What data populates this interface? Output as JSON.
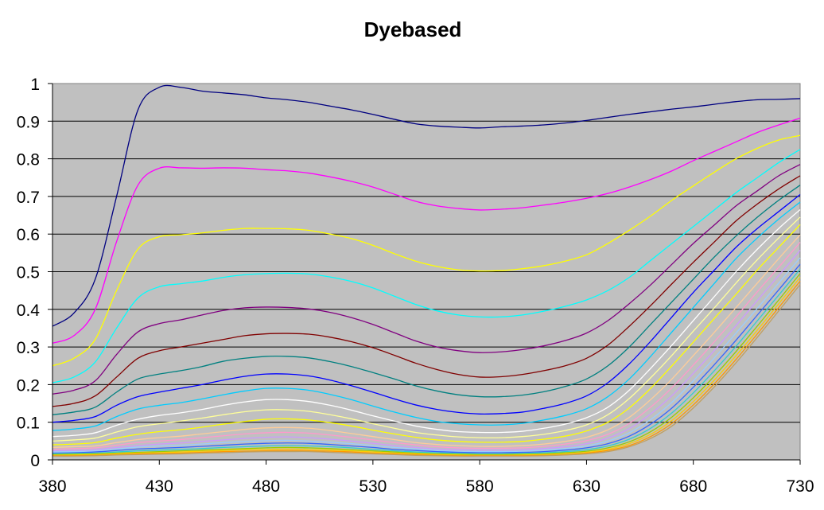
{
  "chart_data": {
    "type": "line",
    "title": "Dyebased",
    "xlabel": "",
    "ylabel": "",
    "xlim": [
      380,
      730
    ],
    "ylim": [
      0,
      1
    ],
    "x_ticks": [
      "380",
      "430",
      "480",
      "530",
      "580",
      "630",
      "680",
      "730"
    ],
    "y_ticks": [
      "0",
      "0.1",
      "0.2",
      "0.3",
      "0.4",
      "0.5",
      "0.6",
      "0.7",
      "0.8",
      "0.9",
      "1"
    ],
    "grid": true,
    "legend": "none",
    "plot_background": "#c0c0c0",
    "x": [
      380,
      390,
      400,
      410,
      420,
      430,
      440,
      450,
      460,
      470,
      480,
      490,
      500,
      510,
      520,
      530,
      540,
      550,
      560,
      570,
      580,
      590,
      600,
      610,
      620,
      630,
      640,
      650,
      660,
      670,
      680,
      690,
      700,
      710,
      720,
      730
    ],
    "series": [
      {
        "color": "#000080",
        "values": [
          0.355,
          0.39,
          0.48,
          0.7,
          0.93,
          0.99,
          0.99,
          0.98,
          0.975,
          0.97,
          0.962,
          0.957,
          0.95,
          0.94,
          0.93,
          0.918,
          0.905,
          0.893,
          0.887,
          0.884,
          0.882,
          0.885,
          0.887,
          0.89,
          0.895,
          0.902,
          0.91,
          0.918,
          0.925,
          0.932,
          0.938,
          0.945,
          0.952,
          0.957,
          0.958,
          0.96
        ]
      },
      {
        "color": "#ff00ff",
        "values": [
          0.31,
          0.33,
          0.4,
          0.58,
          0.73,
          0.775,
          0.776,
          0.775,
          0.776,
          0.775,
          0.771,
          0.768,
          0.762,
          0.752,
          0.74,
          0.725,
          0.706,
          0.687,
          0.675,
          0.668,
          0.664,
          0.666,
          0.67,
          0.677,
          0.685,
          0.695,
          0.708,
          0.725,
          0.745,
          0.768,
          0.795,
          0.82,
          0.845,
          0.87,
          0.89,
          0.908
        ]
      },
      {
        "color": "#ffff00",
        "values": [
          0.25,
          0.27,
          0.32,
          0.45,
          0.56,
          0.593,
          0.598,
          0.603,
          0.61,
          0.615,
          0.615,
          0.614,
          0.61,
          0.6,
          0.588,
          0.57,
          0.548,
          0.528,
          0.514,
          0.505,
          0.502,
          0.503,
          0.508,
          0.516,
          0.528,
          0.545,
          0.575,
          0.61,
          0.648,
          0.69,
          0.728,
          0.765,
          0.8,
          0.828,
          0.85,
          0.862
        ]
      },
      {
        "color": "#00ffff",
        "values": [
          0.205,
          0.22,
          0.26,
          0.35,
          0.43,
          0.46,
          0.468,
          0.475,
          0.485,
          0.492,
          0.495,
          0.496,
          0.494,
          0.486,
          0.474,
          0.457,
          0.435,
          0.413,
          0.396,
          0.385,
          0.38,
          0.38,
          0.385,
          0.395,
          0.408,
          0.425,
          0.45,
          0.485,
          0.53,
          0.575,
          0.62,
          0.665,
          0.71,
          0.75,
          0.79,
          0.825
        ]
      },
      {
        "color": "#800080",
        "values": [
          0.175,
          0.185,
          0.21,
          0.28,
          0.34,
          0.362,
          0.372,
          0.385,
          0.397,
          0.404,
          0.406,
          0.405,
          0.401,
          0.392,
          0.378,
          0.36,
          0.338,
          0.316,
          0.3,
          0.29,
          0.285,
          0.287,
          0.293,
          0.303,
          0.317,
          0.337,
          0.37,
          0.415,
          0.465,
          0.52,
          0.575,
          0.625,
          0.675,
          0.715,
          0.755,
          0.785
        ]
      },
      {
        "color": "#800000",
        "values": [
          0.142,
          0.15,
          0.17,
          0.22,
          0.27,
          0.29,
          0.3,
          0.31,
          0.32,
          0.33,
          0.335,
          0.336,
          0.334,
          0.326,
          0.314,
          0.298,
          0.278,
          0.257,
          0.24,
          0.227,
          0.22,
          0.221,
          0.227,
          0.237,
          0.25,
          0.27,
          0.305,
          0.355,
          0.41,
          0.468,
          0.525,
          0.58,
          0.635,
          0.68,
          0.72,
          0.755
        ]
      },
      {
        "color": "#008080",
        "values": [
          0.12,
          0.127,
          0.14,
          0.18,
          0.215,
          0.228,
          0.237,
          0.248,
          0.262,
          0.27,
          0.275,
          0.275,
          0.271,
          0.261,
          0.248,
          0.232,
          0.215,
          0.197,
          0.183,
          0.173,
          0.168,
          0.168,
          0.172,
          0.181,
          0.195,
          0.215,
          0.25,
          0.3,
          0.36,
          0.42,
          0.48,
          0.54,
          0.595,
          0.645,
          0.69,
          0.73
        ]
      },
      {
        "color": "#0000ff",
        "values": [
          0.1,
          0.105,
          0.115,
          0.145,
          0.168,
          0.18,
          0.19,
          0.2,
          0.212,
          0.222,
          0.228,
          0.228,
          0.223,
          0.212,
          0.197,
          0.18,
          0.162,
          0.146,
          0.134,
          0.126,
          0.122,
          0.123,
          0.127,
          0.137,
          0.15,
          0.17,
          0.205,
          0.255,
          0.315,
          0.38,
          0.445,
          0.505,
          0.565,
          0.615,
          0.66,
          0.705
        ]
      },
      {
        "color": "#00ccff",
        "values": [
          0.078,
          0.082,
          0.09,
          0.115,
          0.135,
          0.145,
          0.152,
          0.162,
          0.173,
          0.183,
          0.19,
          0.19,
          0.185,
          0.174,
          0.16,
          0.143,
          0.127,
          0.113,
          0.102,
          0.096,
          0.093,
          0.093,
          0.097,
          0.106,
          0.118,
          0.136,
          0.168,
          0.215,
          0.275,
          0.34,
          0.405,
          0.47,
          0.535,
          0.59,
          0.64,
          0.685
        ]
      },
      {
        "color": "#ffffff",
        "values": [
          0.062,
          0.065,
          0.072,
          0.092,
          0.108,
          0.118,
          0.125,
          0.134,
          0.145,
          0.154,
          0.16,
          0.16,
          0.155,
          0.145,
          0.132,
          0.117,
          0.103,
          0.09,
          0.081,
          0.075,
          0.073,
          0.073,
          0.076,
          0.084,
          0.095,
          0.112,
          0.14,
          0.185,
          0.243,
          0.305,
          0.37,
          0.435,
          0.5,
          0.56,
          0.615,
          0.665
        ]
      },
      {
        "color": "#ffff99",
        "values": [
          0.05,
          0.053,
          0.058,
          0.074,
          0.088,
          0.096,
          0.103,
          0.111,
          0.12,
          0.128,
          0.133,
          0.133,
          0.129,
          0.12,
          0.109,
          0.096,
          0.084,
          0.073,
          0.066,
          0.061,
          0.059,
          0.059,
          0.062,
          0.068,
          0.078,
          0.093,
          0.12,
          0.163,
          0.218,
          0.278,
          0.342,
          0.405,
          0.47,
          0.532,
          0.59,
          0.645
        ]
      },
      {
        "color": "#ffff00",
        "values": [
          0.04,
          0.042,
          0.046,
          0.058,
          0.068,
          0.075,
          0.08,
          0.087,
          0.095,
          0.102,
          0.108,
          0.109,
          0.106,
          0.099,
          0.09,
          0.079,
          0.069,
          0.06,
          0.053,
          0.049,
          0.047,
          0.047,
          0.049,
          0.055,
          0.063,
          0.077,
          0.1,
          0.138,
          0.19,
          0.25,
          0.313,
          0.377,
          0.44,
          0.505,
          0.565,
          0.625
        ]
      },
      {
        "color": "#ffcc99",
        "values": [
          0.033,
          0.035,
          0.037,
          0.046,
          0.054,
          0.059,
          0.063,
          0.069,
          0.075,
          0.081,
          0.085,
          0.086,
          0.084,
          0.078,
          0.07,
          0.062,
          0.054,
          0.046,
          0.041,
          0.038,
          0.036,
          0.036,
          0.038,
          0.042,
          0.049,
          0.06,
          0.08,
          0.113,
          0.16,
          0.215,
          0.277,
          0.34,
          0.405,
          0.47,
          0.535,
          0.598
        ]
      },
      {
        "color": "#ff99cc",
        "values": [
          0.028,
          0.03,
          0.032,
          0.039,
          0.046,
          0.05,
          0.054,
          0.059,
          0.064,
          0.069,
          0.072,
          0.073,
          0.071,
          0.066,
          0.06,
          0.053,
          0.046,
          0.04,
          0.035,
          0.032,
          0.031,
          0.031,
          0.032,
          0.036,
          0.042,
          0.051,
          0.068,
          0.097,
          0.14,
          0.192,
          0.252,
          0.315,
          0.38,
          0.447,
          0.512,
          0.578
        ]
      },
      {
        "color": "#cc99ff",
        "values": [
          0.024,
          0.025,
          0.027,
          0.033,
          0.038,
          0.042,
          0.045,
          0.049,
          0.053,
          0.057,
          0.06,
          0.061,
          0.059,
          0.055,
          0.05,
          0.044,
          0.038,
          0.033,
          0.029,
          0.027,
          0.026,
          0.026,
          0.027,
          0.03,
          0.035,
          0.043,
          0.058,
          0.083,
          0.122,
          0.171,
          0.23,
          0.292,
          0.357,
          0.424,
          0.49,
          0.557
        ]
      },
      {
        "color": "#99ccff",
        "values": [
          0.021,
          0.022,
          0.024,
          0.029,
          0.034,
          0.037,
          0.039,
          0.042,
          0.046,
          0.049,
          0.051,
          0.052,
          0.05,
          0.047,
          0.043,
          0.038,
          0.033,
          0.029,
          0.025,
          0.023,
          0.022,
          0.022,
          0.023,
          0.026,
          0.03,
          0.037,
          0.05,
          0.072,
          0.107,
          0.153,
          0.21,
          0.272,
          0.337,
          0.403,
          0.47,
          0.537
        ]
      },
      {
        "color": "#3366ff",
        "values": [
          0.018,
          0.019,
          0.021,
          0.025,
          0.029,
          0.031,
          0.033,
          0.036,
          0.039,
          0.042,
          0.044,
          0.045,
          0.044,
          0.041,
          0.037,
          0.033,
          0.028,
          0.025,
          0.022,
          0.02,
          0.019,
          0.019,
          0.02,
          0.022,
          0.026,
          0.032,
          0.043,
          0.063,
          0.095,
          0.138,
          0.193,
          0.254,
          0.318,
          0.385,
          0.452,
          0.52
        ]
      },
      {
        "color": "#33cccc",
        "values": [
          0.016,
          0.017,
          0.018,
          0.021,
          0.024,
          0.026,
          0.028,
          0.03,
          0.033,
          0.035,
          0.037,
          0.038,
          0.037,
          0.035,
          0.032,
          0.028,
          0.024,
          0.021,
          0.019,
          0.017,
          0.016,
          0.016,
          0.017,
          0.019,
          0.022,
          0.027,
          0.037,
          0.055,
          0.084,
          0.125,
          0.178,
          0.238,
          0.302,
          0.37,
          0.438,
          0.507
        ]
      },
      {
        "color": "#99cc00",
        "values": [
          0.014,
          0.015,
          0.016,
          0.018,
          0.02,
          0.022,
          0.024,
          0.026,
          0.028,
          0.03,
          0.032,
          0.033,
          0.032,
          0.03,
          0.027,
          0.024,
          0.021,
          0.018,
          0.016,
          0.015,
          0.014,
          0.014,
          0.015,
          0.016,
          0.019,
          0.023,
          0.032,
          0.048,
          0.075,
          0.114,
          0.165,
          0.224,
          0.288,
          0.356,
          0.425,
          0.495
        ]
      },
      {
        "color": "#ffcc00",
        "values": [
          0.012,
          0.013,
          0.014,
          0.016,
          0.018,
          0.019,
          0.021,
          0.023,
          0.025,
          0.027,
          0.028,
          0.029,
          0.028,
          0.026,
          0.024,
          0.021,
          0.018,
          0.016,
          0.014,
          0.013,
          0.012,
          0.012,
          0.013,
          0.014,
          0.016,
          0.02,
          0.028,
          0.043,
          0.068,
          0.105,
          0.155,
          0.213,
          0.277,
          0.345,
          0.415,
          0.485
        ]
      },
      {
        "color": "#ff9900",
        "values": [
          0.011,
          0.011,
          0.012,
          0.014,
          0.016,
          0.017,
          0.018,
          0.02,
          0.022,
          0.023,
          0.024,
          0.025,
          0.024,
          0.023,
          0.021,
          0.018,
          0.016,
          0.014,
          0.012,
          0.011,
          0.011,
          0.011,
          0.011,
          0.012,
          0.014,
          0.018,
          0.025,
          0.038,
          0.062,
          0.097,
          0.146,
          0.203,
          0.267,
          0.335,
          0.405,
          0.475
        ]
      },
      {
        "color": "#c0a060",
        "values": [
          0.01,
          0.01,
          0.011,
          0.013,
          0.014,
          0.015,
          0.016,
          0.018,
          0.019,
          0.021,
          0.022,
          0.022,
          0.022,
          0.02,
          0.018,
          0.016,
          0.014,
          0.012,
          0.011,
          0.01,
          0.01,
          0.01,
          0.01,
          0.011,
          0.013,
          0.016,
          0.022,
          0.035,
          0.057,
          0.09,
          0.138,
          0.195,
          0.258,
          0.326,
          0.396,
          0.466
        ]
      }
    ]
  }
}
